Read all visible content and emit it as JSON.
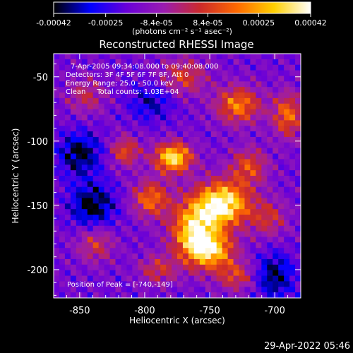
{
  "colorbar": {
    "tick_labels": [
      "-0.00042",
      "-0.00025",
      "-8.4e-05",
      "8.4e-05",
      "0.00025",
      "0.00042"
    ],
    "tick_values": [
      -0.00042,
      -0.00025,
      -8.4e-05,
      8.4e-05,
      0.00025,
      0.00042
    ],
    "range": [
      -0.00042,
      0.00042
    ],
    "units": "(photons cm⁻² s⁻¹ asec⁻²)",
    "colors": [
      "#000000",
      "#0000ff",
      "#6a00d8",
      "#9a1cb0",
      "#cc2a2a",
      "#ff6a00",
      "#ffd000",
      "#ffffff"
    ]
  },
  "chart_data": {
    "type": "heatmap",
    "title": "Reconstructed RHESSI Image",
    "xlabel": "Heliocentric X (arcsec)",
    "ylabel": "Heliocentric Y (arcsec)",
    "xlim": [
      -870,
      -680
    ],
    "ylim": [
      -222,
      -32
    ],
    "x_ticks": [
      -850,
      -800,
      -750,
      -700
    ],
    "y_ticks": [
      -50,
      -100,
      -150,
      -200
    ],
    "info_lines": [
      "7-Apr-2005 09:34:08.000 to 09:40:08.000",
      "Detectors: 3F 4F 5F 6F 7F 8F, Att 0",
      "Energy Range: 25.0 - 50.0 keV",
      "Clean     Total counts: 1.03E+04"
    ],
    "peak_label": "Position of Peak = [-740,-149]",
    "peak": [
      -740,
      -149
    ],
    "sources": [
      {
        "x": -740,
        "y": -149,
        "sx": 14,
        "sy": 12,
        "amp": 1.0
      },
      {
        "x": -762,
        "y": -170,
        "sx": 12,
        "sy": 16,
        "amp": 0.85
      },
      {
        "x": -778,
        "y": -113,
        "sx": 10,
        "sy": 8,
        "amp": 0.9
      },
      {
        "x": -748,
        "y": -185,
        "sx": 12,
        "sy": 10,
        "amp": 0.7
      },
      {
        "x": -728,
        "y": -72,
        "sx": 12,
        "sy": 10,
        "amp": 0.6
      },
      {
        "x": -795,
        "y": -145,
        "sx": 10,
        "sy": 10,
        "amp": 0.55
      },
      {
        "x": -815,
        "y": -108,
        "sx": 8,
        "sy": 8,
        "amp": 0.45
      },
      {
        "x": -690,
        "y": -80,
        "sx": 8,
        "sy": 12,
        "amp": 0.55
      },
      {
        "x": -770,
        "y": -50,
        "sx": 12,
        "sy": 10,
        "amp": 0.4
      },
      {
        "x": -838,
        "y": -180,
        "sx": 10,
        "sy": 10,
        "amp": 0.35
      },
      {
        "x": -720,
        "y": -120,
        "sx": 10,
        "sy": 10,
        "amp": 0.45
      },
      {
        "x": -790,
        "y": -200,
        "sx": 10,
        "sy": 8,
        "amp": 0.35
      },
      {
        "x": -845,
        "y": -65,
        "sx": 10,
        "sy": 10,
        "amp": 0.3
      },
      {
        "x": -705,
        "y": -160,
        "sx": 10,
        "sy": 10,
        "amp": 0.35
      },
      {
        "x": -730,
        "y": -205,
        "sx": 10,
        "sy": 8,
        "amp": 0.4
      },
      {
        "x": -840,
        "y": -150,
        "sx": 12,
        "sy": 12,
        "amp": -0.5
      },
      {
        "x": -850,
        "y": -110,
        "sx": 12,
        "sy": 12,
        "amp": -0.45
      },
      {
        "x": -700,
        "y": -205,
        "sx": 10,
        "sy": 12,
        "amp": -0.45
      },
      {
        "x": -795,
        "y": -70,
        "sx": 12,
        "sy": 10,
        "amp": -0.3
      }
    ]
  },
  "footer": {
    "timestamp": "29-Apr-2022 05:46"
  }
}
